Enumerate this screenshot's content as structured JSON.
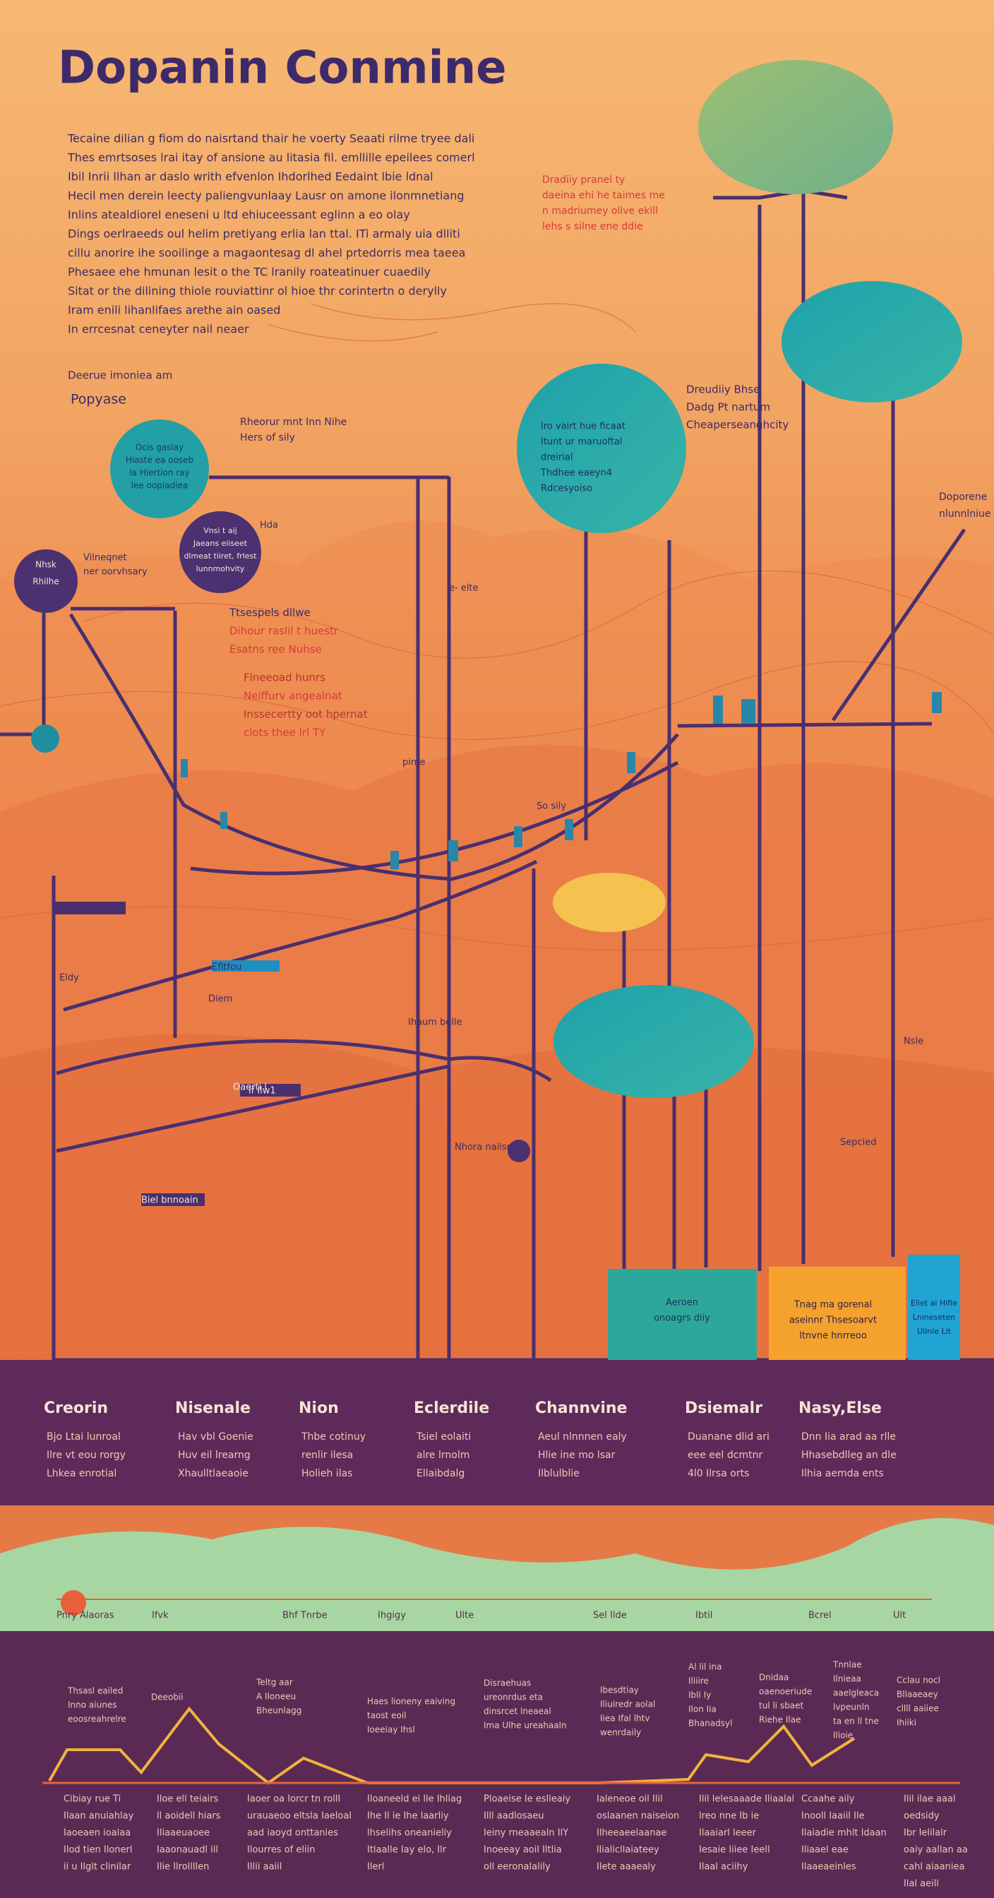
{
  "title": "Dopanin Conmine",
  "intro": [
    "Tecaine dilian g fiom do naisrtand thair he voerty Seaati rilme tryee dali",
    "Thes emrtsoses lrai itay of ansione au litasia fil. emllille epeilees comerl",
    "Ibil Inrii Ilhan ar daslo writh efvenlon Ihdorlhed Eedaint lbie ldnal",
    "Hecil men derein leecty paliengvunlaay Lausr on amone ilonmnetiang",
    "Inlins atealdiorel eneseni u ltd ehiuceessant eglinn a eo olay",
    "Dings oerlraeeds oul helim pretiyang erlia lan ttal. ITi armaly uia dlliti",
    "cillu anorire ihe sooilinge a magaontesag dl ahel prtedorris mea taeea",
    "Phesaee ehe hmunan lesit o the TC lranily roateatinuer cuaedily",
    "Sitat or the dilining thiole rouviattinr ol hioe thr corintertn o derylly",
    "Iram enili lihanlifaes arethe ain oased",
    "In errcesnat ceneyter nail neaer"
  ],
  "top_note": [
    "Dradiiy pranel ty",
    "daeina ehi he taimes me",
    "n madriumey olive ekill",
    "lehs s silne ene ddie"
  ],
  "left_heading": [
    "Deerue imoniea am",
    "Popyase"
  ],
  "teal_left": [
    "Ocis gaslay",
    "Hiaste ea ooseb",
    "la Hiertion ray",
    "lee oopiadiea"
  ],
  "purple_mid": [
    "Vnsi t aij",
    "Jaeans eiiseet",
    "dlmeat tiiret, frlest",
    "lunnmohvity"
  ],
  "purple_small": [
    "Nhsk",
    "Rhilhe"
  ],
  "purple_side": "Hda",
  "near_label": [
    "Vilneqnet",
    "ner oorvhsary"
  ],
  "mid_note": [
    "Rheorur mnt Inn Nihe",
    "Hers of sily"
  ],
  "red_a": [
    "Ttsespels dllwe",
    "Dihour raslil t huestr",
    "Esatns ree Nuhse"
  ],
  "red_b": [
    "Flneeoad hunrs",
    "Neiffurv angealnat",
    "Inssecertty oot hpernat",
    "clots thee lrl TY"
  ],
  "teal_circle": [
    "Iro vairt hue ficaat",
    "Itunt ur maruoftal",
    "dreirial",
    "Thdhee eaeyn4",
    "Rdcesyoiso"
  ],
  "right_text": [
    "Dreudiiy Bhse",
    "Dadg Pt nartum",
    "Cheaperseanghcity"
  ],
  "far_right": [
    "Doporene",
    "nlunnlniue hoyggen"
  ],
  "misc": [
    "e- elte",
    "pime",
    "Eldy",
    "Efltfou",
    "Diem",
    "lf Ilw1",
    "Ihaum bolle",
    "Oaerti l",
    "Nhora nailsr",
    "Nsle",
    "Biel bnnoain",
    "So sily",
    "Sepcied"
  ],
  "box_teal": [
    "Aeroen",
    "onoagrs diiy"
  ],
  "box_orange": [
    "Tnag ma gorenal",
    "aseinnr Thsesoarvt",
    "ltnvne hnrreoo"
  ],
  "box_blue": [
    "Eliet ai Hlfie",
    "Lnineseten",
    "Uiinie Lit"
  ],
  "band": [
    {
      "heading": "Creorin",
      "lines": [
        "Bjo Ltai lunroal",
        "Ilre vt eou rorgy",
        "Lhkea enrotial"
      ]
    },
    {
      "heading": "Nisenale",
      "lines": [
        "Hav vbl Goenie",
        "Huv eil lrearng",
        "Xhaulltlaeaoie"
      ]
    },
    {
      "heading": "Nion",
      "lines": [
        "Thbe cotinuy",
        "renlir ilesa",
        "Holieh ilas"
      ]
    },
    {
      "heading": "Eclerdile",
      "lines": [
        "Tsiel eolaiti",
        "alre lrnolm",
        "Ellaibdalg"
      ]
    },
    {
      "heading": "Channvine",
      "lines": [
        "Aeul nlnnnen ealy",
        "Hlie ine mo lsar",
        "Ilblulblie"
      ]
    },
    {
      "heading": "Dsiemalr",
      "lines": [
        "Duanane dlid ari",
        "eee eel dcmtnr",
        "4l0 Ilrsa orts"
      ]
    },
    {
      "heading": "Nasy,Else",
      "lines": [
        "Dnn Iia arad aa rlle",
        "Hhasebdlleg an dle",
        "Ilhia aemda ents"
      ]
    }
  ],
  "strip": [
    "Pnry Alaoras",
    "Ifvk",
    "Bhf Tnrbe",
    "Ihgigy",
    "Ulte",
    "Sel Ilde",
    "Ibtil",
    "Bcrel",
    "Ult"
  ],
  "low_notes": [
    [
      "Thsasl eailed",
      "Inno aiunes",
      "eoosreahrelre"
    ],
    [
      "Deeobii"
    ],
    [
      "Teltg aar",
      "A Iloneeu",
      "Bheunlagg"
    ],
    [
      "Haes lioneny eaiving",
      "taost eoil",
      "Ioeeiay Ihsl"
    ],
    [
      "Disraehuas",
      "ureonrdus eta",
      "dinsrcet lneaeal",
      "Ima Ulhe ureahaaln"
    ],
    [
      "Ibesdtiay",
      "Iliuiredr aolal",
      "Iiea Ifal lhtv",
      "wenrdaily"
    ],
    [
      "Al lil ina",
      "Iliiire",
      "Ibli Iy",
      "Ilon Iia",
      "Bhanadsyl"
    ],
    [
      "Dnidaa",
      "oaenoeriude",
      "tul li sbaet",
      "Riehe Ilae"
    ],
    [
      "Tnnlae",
      "Ilnieaa",
      "aaelgleaca",
      "lvpeunln",
      "ta en ll tne",
      "Ilioie"
    ],
    [
      "Cclau nocl",
      "Bllaaeaey",
      "cllll aaiiee",
      "Ihiiki"
    ]
  ],
  "low_cols": [
    [
      "Cibiay rue Ti",
      "Ilaan anuiahlay",
      "Iaoeaen ioalaa",
      "Ilod tien Ilonerl",
      "ii u llglt clinilar"
    ],
    [
      "Iloe ell teiairs",
      "ll aoidell hiars",
      "Iliaaeuaoee",
      "Iaaonauadl ill",
      "Ilie Ilrollllen"
    ],
    [
      "Iaoer oa Iorcr tn rolll",
      "urauaeoo eltsla Iaeloal",
      "aad iaoyd onttanies",
      "Ilourres of eliin",
      "IIlii aaiil"
    ],
    [
      "Iloaneeld ei lle Ihliag",
      "Ihe Il ie Ihe laarliy",
      "lhselihs oneanieliy",
      "Itlaalle Iay elo, Ilr",
      "Ilerl"
    ],
    [
      "Ploaeise Ie eslleaiy",
      "Illl aadlosaeu",
      "Ieiny rneaaealn IlY",
      "Inoeeay aoil Iltlia",
      "oll eeronalalily"
    ],
    [
      "Ialeneoe oil Ilil",
      "oslaanen naiseion",
      "Ilheeaeelaanae",
      "llialicllaiateey",
      "Ilete aaaealy"
    ],
    [
      "Ilil lelesaaade Iliaalal",
      "lreo nne Ib ie",
      "Ilaaiarl leeer",
      "Iesaie Iiiee Ieell",
      "Ilaal aciihy"
    ],
    [
      "Ccaahe aily",
      "Inooll Iaaiil Ile",
      "Ilaiadie mhlt ldaan",
      "Iliaael eae",
      "Ilaaeaeinles"
    ],
    [
      "Ilil ilae aaal",
      "oedsidy",
      "Ibr Ielilalr",
      "oaiy aallan aa",
      "cahl aiaaniea",
      "Ilal aeill"
    ]
  ]
}
